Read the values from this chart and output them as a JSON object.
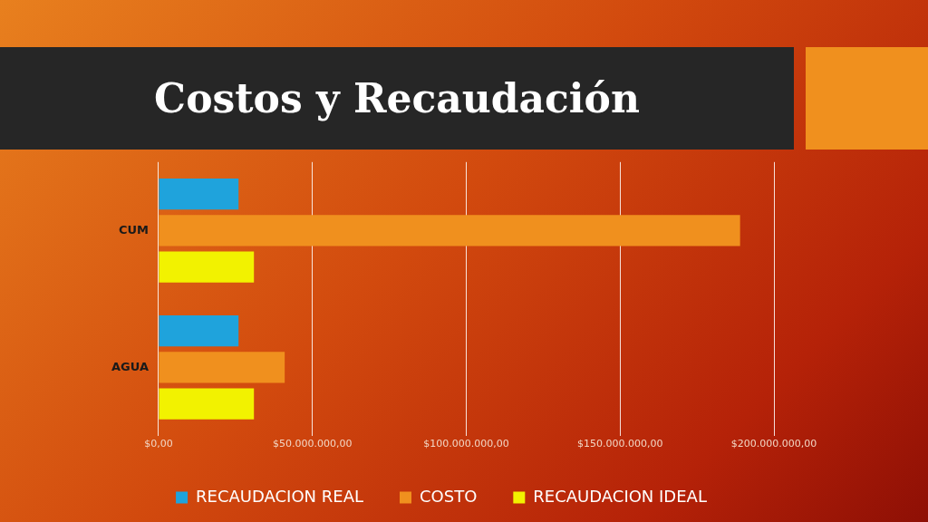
{
  "chart_data": {
    "type": "bar",
    "orientation": "horizontal",
    "title": "Costos y Recaudación",
    "categories": [
      "CUM",
      "AGUA"
    ],
    "series": [
      {
        "name": "RECAUDACION REAL",
        "color": "#1fa3dc",
        "values": [
          26000000,
          26000000
        ]
      },
      {
        "name": "COSTO",
        "color": "#f0901e",
        "values": [
          189000000,
          41000000
        ]
      },
      {
        "name": "RECAUDACION IDEAL",
        "color": "#f2f200",
        "values": [
          31000000,
          31000000
        ]
      }
    ],
    "xlim": [
      0,
      200000000
    ],
    "xticks": [
      {
        "value": 0,
        "label": "$0,00"
      },
      {
        "value": 50000000,
        "label": "$50.000.000,00"
      },
      {
        "value": 100000000,
        "label": "$100.000.000,00"
      },
      {
        "value": 150000000,
        "label": "$150.000.000,00"
      },
      {
        "value": 200000000,
        "label": "$200.000.000,00"
      }
    ],
    "grid": "x",
    "legend": "bottom"
  }
}
